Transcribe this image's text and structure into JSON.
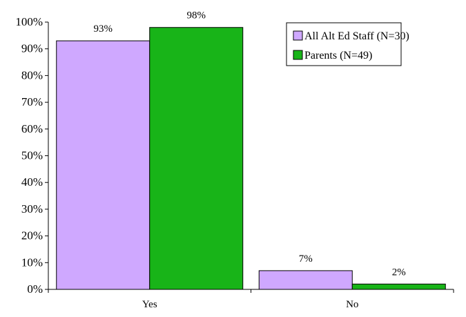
{
  "chart_data": {
    "type": "bar",
    "categories": [
      "Yes",
      "No"
    ],
    "series": [
      {
        "name": "All Alt Ed Staff (N=30)",
        "values": [
          93,
          7
        ],
        "color": "#cfa8ff",
        "data_labels": [
          "93%",
          "7%"
        ]
      },
      {
        "name": "Parents (N=49)",
        "values": [
          98,
          2
        ],
        "color": "#18b418",
        "data_labels": [
          "98%",
          "2%"
        ]
      }
    ],
    "ylim": [
      0,
      100
    ],
    "yticks": [
      0,
      10,
      20,
      30,
      40,
      50,
      60,
      70,
      80,
      90,
      100
    ],
    "ytick_labels": [
      "0%",
      "10%",
      "20%",
      "30%",
      "40%",
      "50%",
      "60%",
      "70%",
      "80%",
      "90%",
      "100%"
    ],
    "title": "",
    "xlabel": "",
    "ylabel": "",
    "grid": false,
    "legend_position": "top-right"
  }
}
